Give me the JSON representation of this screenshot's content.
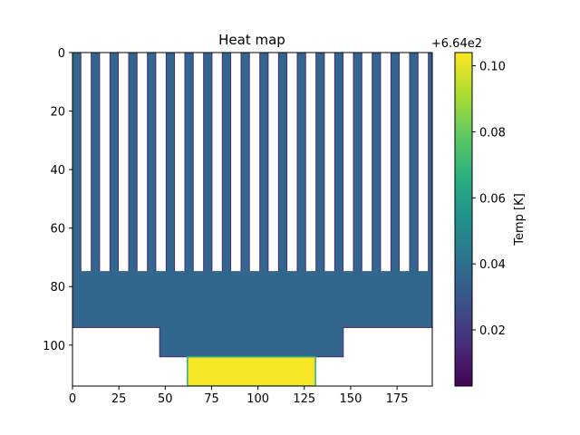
{
  "chart_data": {
    "type": "heatmap",
    "title": "Heat map",
    "xlabel": "",
    "ylabel": "",
    "xlim": [
      0,
      194
    ],
    "ylim": [
      114,
      0
    ],
    "x_ticks": [
      0,
      25,
      50,
      75,
      100,
      125,
      150,
      175
    ],
    "y_ticks": [
      0,
      20,
      40,
      60,
      80,
      100
    ],
    "colorbar": {
      "label": "Temp [K]",
      "offset_text": "+6.64e2",
      "offset": 664,
      "range": [
        0.003,
        0.104
      ],
      "ticks": [
        0.02,
        0.04,
        0.06,
        0.08,
        0.1
      ],
      "tick_labels": [
        "0.02",
        "0.04",
        "0.06",
        "0.08",
        "0.10"
      ],
      "colormap": "viridis"
    },
    "regions": [
      {
        "name": "fins",
        "value": 0.036,
        "x_range": [
          0,
          194
        ],
        "y_range": [
          0,
          75
        ],
        "fin_count": 20,
        "fin_width": 4.5,
        "fin_pitch": 10.1
      },
      {
        "name": "base plate",
        "value": 0.036,
        "x_range": [
          0,
          194
        ],
        "y_range": [
          75,
          94
        ]
      },
      {
        "name": "spreader",
        "value": 0.036,
        "x_range": [
          47,
          146
        ],
        "y_range": [
          94,
          104
        ]
      },
      {
        "name": "heat source",
        "value": 0.103,
        "x_range": [
          62,
          131
        ],
        "y_range": [
          104,
          114
        ]
      }
    ],
    "grid": false
  }
}
